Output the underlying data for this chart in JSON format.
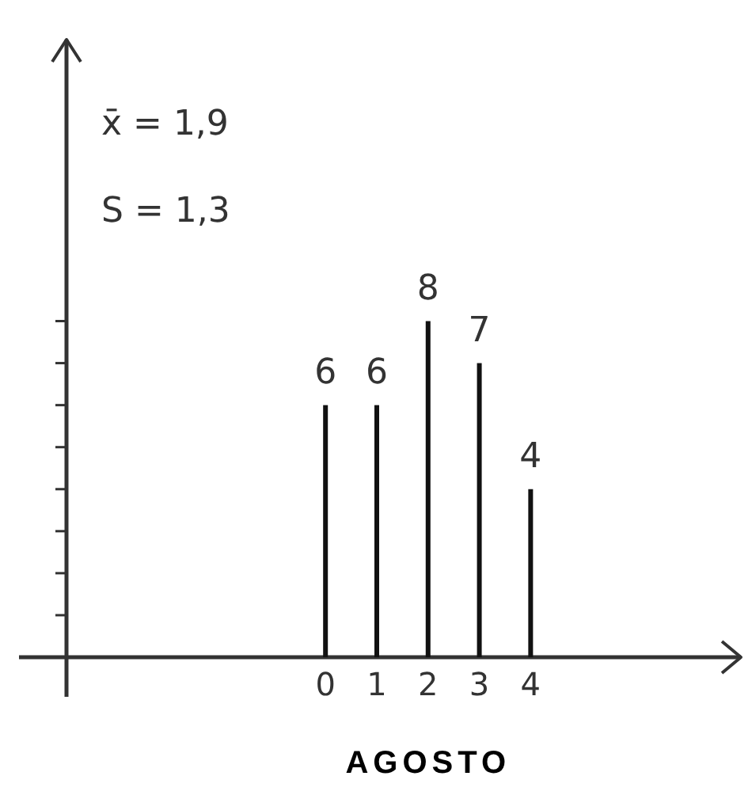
{
  "chart_data": {
    "type": "bar",
    "title": "AGOSTO",
    "x": [
      0,
      1,
      2,
      3,
      4
    ],
    "values": [
      6,
      6,
      8,
      7,
      4
    ],
    "color": "#111111",
    "xlim": [
      -5.05,
      8.1
    ],
    "xticks": [
      0,
      1,
      2,
      3,
      4
    ],
    "ylim": [
      0,
      14.7
    ],
    "yticks": [
      {
        "value": 1,
        "label": null
      },
      {
        "value": 2,
        "label": null
      },
      {
        "value": 3,
        "label": null
      },
      {
        "value": 4,
        "label": null
      },
      {
        "value": 5,
        "label": null
      },
      {
        "value": 6,
        "label": null
      },
      {
        "value": 7,
        "label": null
      },
      {
        "value": 8,
        "label": null
      }
    ],
    "data_labels": true,
    "annotations": [
      "x̄ = 1,9",
      "S = 1,3"
    ]
  }
}
